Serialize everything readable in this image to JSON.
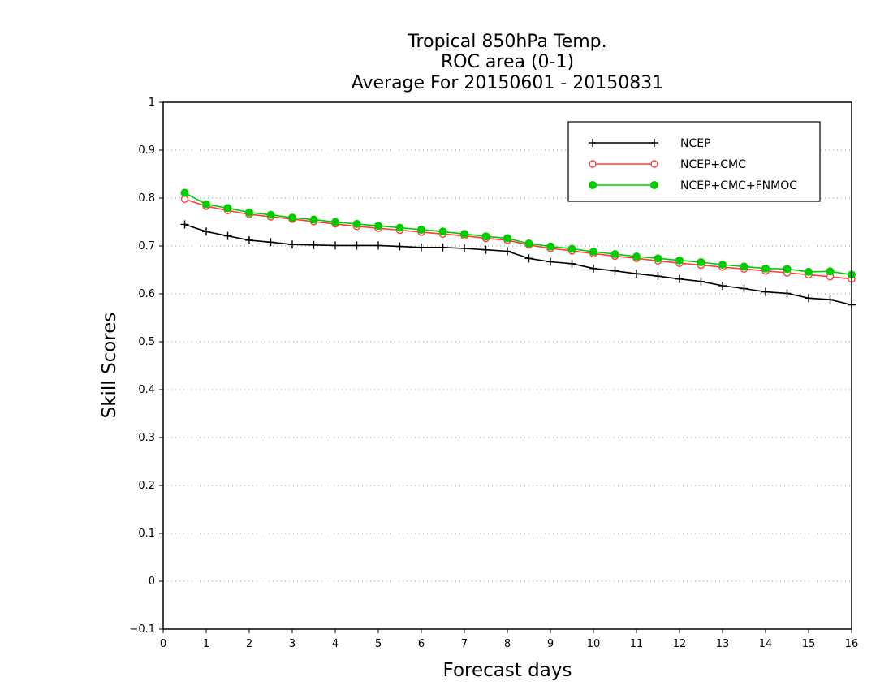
{
  "chart_data": {
    "type": "line",
    "title_lines": [
      "Tropical 850hPa Temp.",
      "ROC area (0-1)",
      "Average For 20150601 - 20150831"
    ],
    "xlabel": "Forecast days",
    "ylabel": "Skill Scores",
    "xlim": [
      0,
      16
    ],
    "ylim": [
      -0.1,
      1
    ],
    "x_ticks": [
      "0",
      "1",
      "2",
      "3",
      "4",
      "5",
      "6",
      "7",
      "8",
      "9",
      "10",
      "11",
      "12",
      "13",
      "14",
      "15",
      "16"
    ],
    "y_ticks": [
      "1",
      "0.9",
      "0.8",
      "0.7",
      "0.6",
      "0.5",
      "0.4",
      "0.3",
      "0.2",
      "0.1",
      "0",
      "−0.1"
    ],
    "grid": "horizontal-dotted",
    "legend_position": "top-right",
    "x": [
      0.5,
      1,
      1.5,
      2,
      2.5,
      3,
      3.5,
      4,
      4.5,
      5,
      5.5,
      6,
      6.5,
      7,
      7.5,
      8,
      8.5,
      9,
      9.5,
      10,
      10.5,
      11,
      11.5,
      12,
      12.5,
      13,
      13.5,
      14,
      14.5,
      15,
      15.5,
      16
    ],
    "series": [
      {
        "name": "NCEP",
        "color": "#000000",
        "marker": "plus",
        "values": [
          0.745,
          0.73,
          0.721,
          0.712,
          0.708,
          0.703,
          0.702,
          0.701,
          0.701,
          0.701,
          0.699,
          0.697,
          0.697,
          0.695,
          0.692,
          0.689,
          0.674,
          0.667,
          0.663,
          0.653,
          0.648,
          0.642,
          0.637,
          0.631,
          0.626,
          0.617,
          0.611,
          0.604,
          0.601,
          0.591,
          0.588,
          0.577
        ]
      },
      {
        "name": "NCEP+CMC",
        "color": "#ff3b3b",
        "marker": "open-circle",
        "values": [
          0.798,
          0.783,
          0.774,
          0.766,
          0.761,
          0.756,
          0.751,
          0.746,
          0.741,
          0.737,
          0.733,
          0.729,
          0.725,
          0.721,
          0.716,
          0.712,
          0.702,
          0.695,
          0.69,
          0.684,
          0.679,
          0.674,
          0.669,
          0.664,
          0.66,
          0.656,
          0.652,
          0.648,
          0.644,
          0.64,
          0.636,
          0.631
        ]
      },
      {
        "name": "NCEP+CMC+FNMOC",
        "color": "#00cc00",
        "marker": "filled-circle",
        "values": [
          0.811,
          0.787,
          0.779,
          0.77,
          0.765,
          0.759,
          0.755,
          0.75,
          0.746,
          0.742,
          0.738,
          0.734,
          0.73,
          0.725,
          0.72,
          0.716,
          0.705,
          0.699,
          0.694,
          0.688,
          0.683,
          0.678,
          0.674,
          0.67,
          0.666,
          0.661,
          0.657,
          0.653,
          0.652,
          0.646,
          0.647,
          0.64
        ]
      }
    ]
  }
}
